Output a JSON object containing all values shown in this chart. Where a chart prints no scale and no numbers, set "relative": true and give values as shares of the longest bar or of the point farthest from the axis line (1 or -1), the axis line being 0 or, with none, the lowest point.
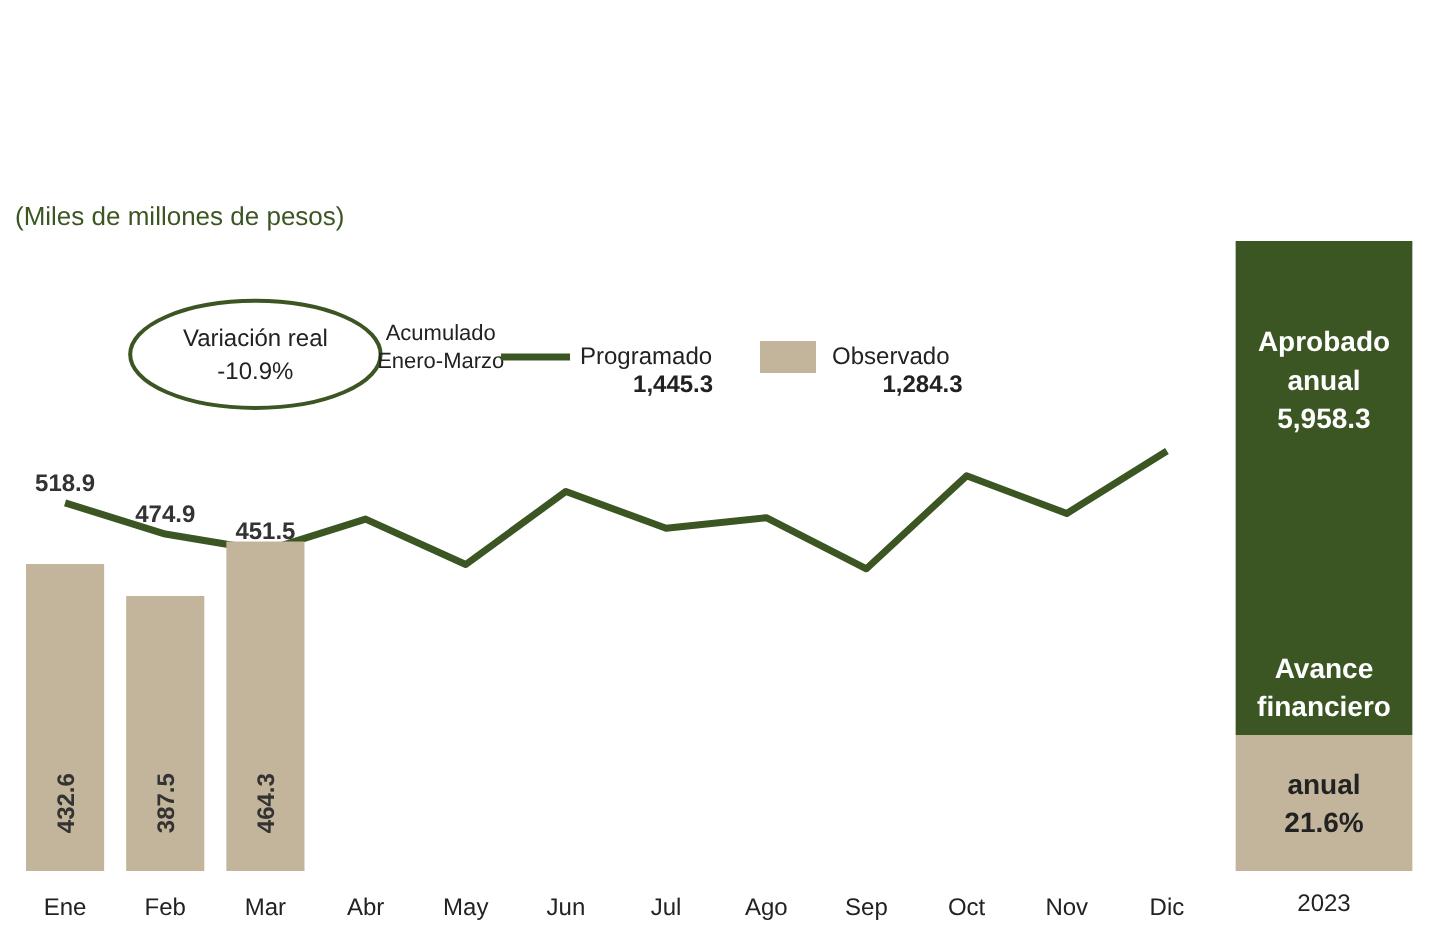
{
  "chart_data": [
    {
      "type": "line",
      "title": "(Miles de millones de pesos)",
      "legend_title": "Acumulado Enero-Marzo",
      "categories": [
        "Ene",
        "Feb",
        "Mar",
        "Abr",
        "May",
        "Jun",
        "Jul",
        "Ago",
        "Sep",
        "Oct",
        "Nov",
        "Dic"
      ],
      "series": [
        {
          "name": "Programado",
          "color": "#3b5623",
          "values": [
            518.9,
            474.9,
            451.5,
            496,
            432,
            535,
            483,
            498,
            426,
            557,
            504,
            592
          ],
          "value_labels": [
            "518.9",
            "474.9",
            "451.5",
            null,
            null,
            null,
            null,
            null,
            null,
            null,
            null,
            null
          ]
        },
        {
          "name": "Observado",
          "type": "bar",
          "color": "#c3b59b",
          "values": [
            432.6,
            387.5,
            464.3,
            null,
            null,
            null,
            null,
            null,
            null,
            null,
            null,
            null
          ],
          "value_labels": [
            "432.6",
            "387.5",
            "464.3",
            null,
            null,
            null,
            null,
            null,
            null,
            null,
            null,
            null
          ]
        }
      ],
      "annotations": [
        "Variación real\n-10.9%",
        "1,445.3",
        "1,284.3"
      ],
      "tick_labels": "x",
      "grid": false,
      "legend": "top"
    },
    {
      "type": "bar",
      "stacked": true,
      "relative": true,
      "categories": [
        "2023"
      ],
      "series": [
        {
          "color": "#c3b59b",
          "values": [
            0.216
          ]
        },
        {
          "color": "#3b5623",
          "values": [
            0.784
          ]
        }
      ],
      "annotations": [
        "Aprobado\nanual\n5,958.3",
        "Avance\nfinanciero",
        "anual\n21.6%"
      ],
      "tick_labels": "x",
      "grid": false
    }
  ]
}
